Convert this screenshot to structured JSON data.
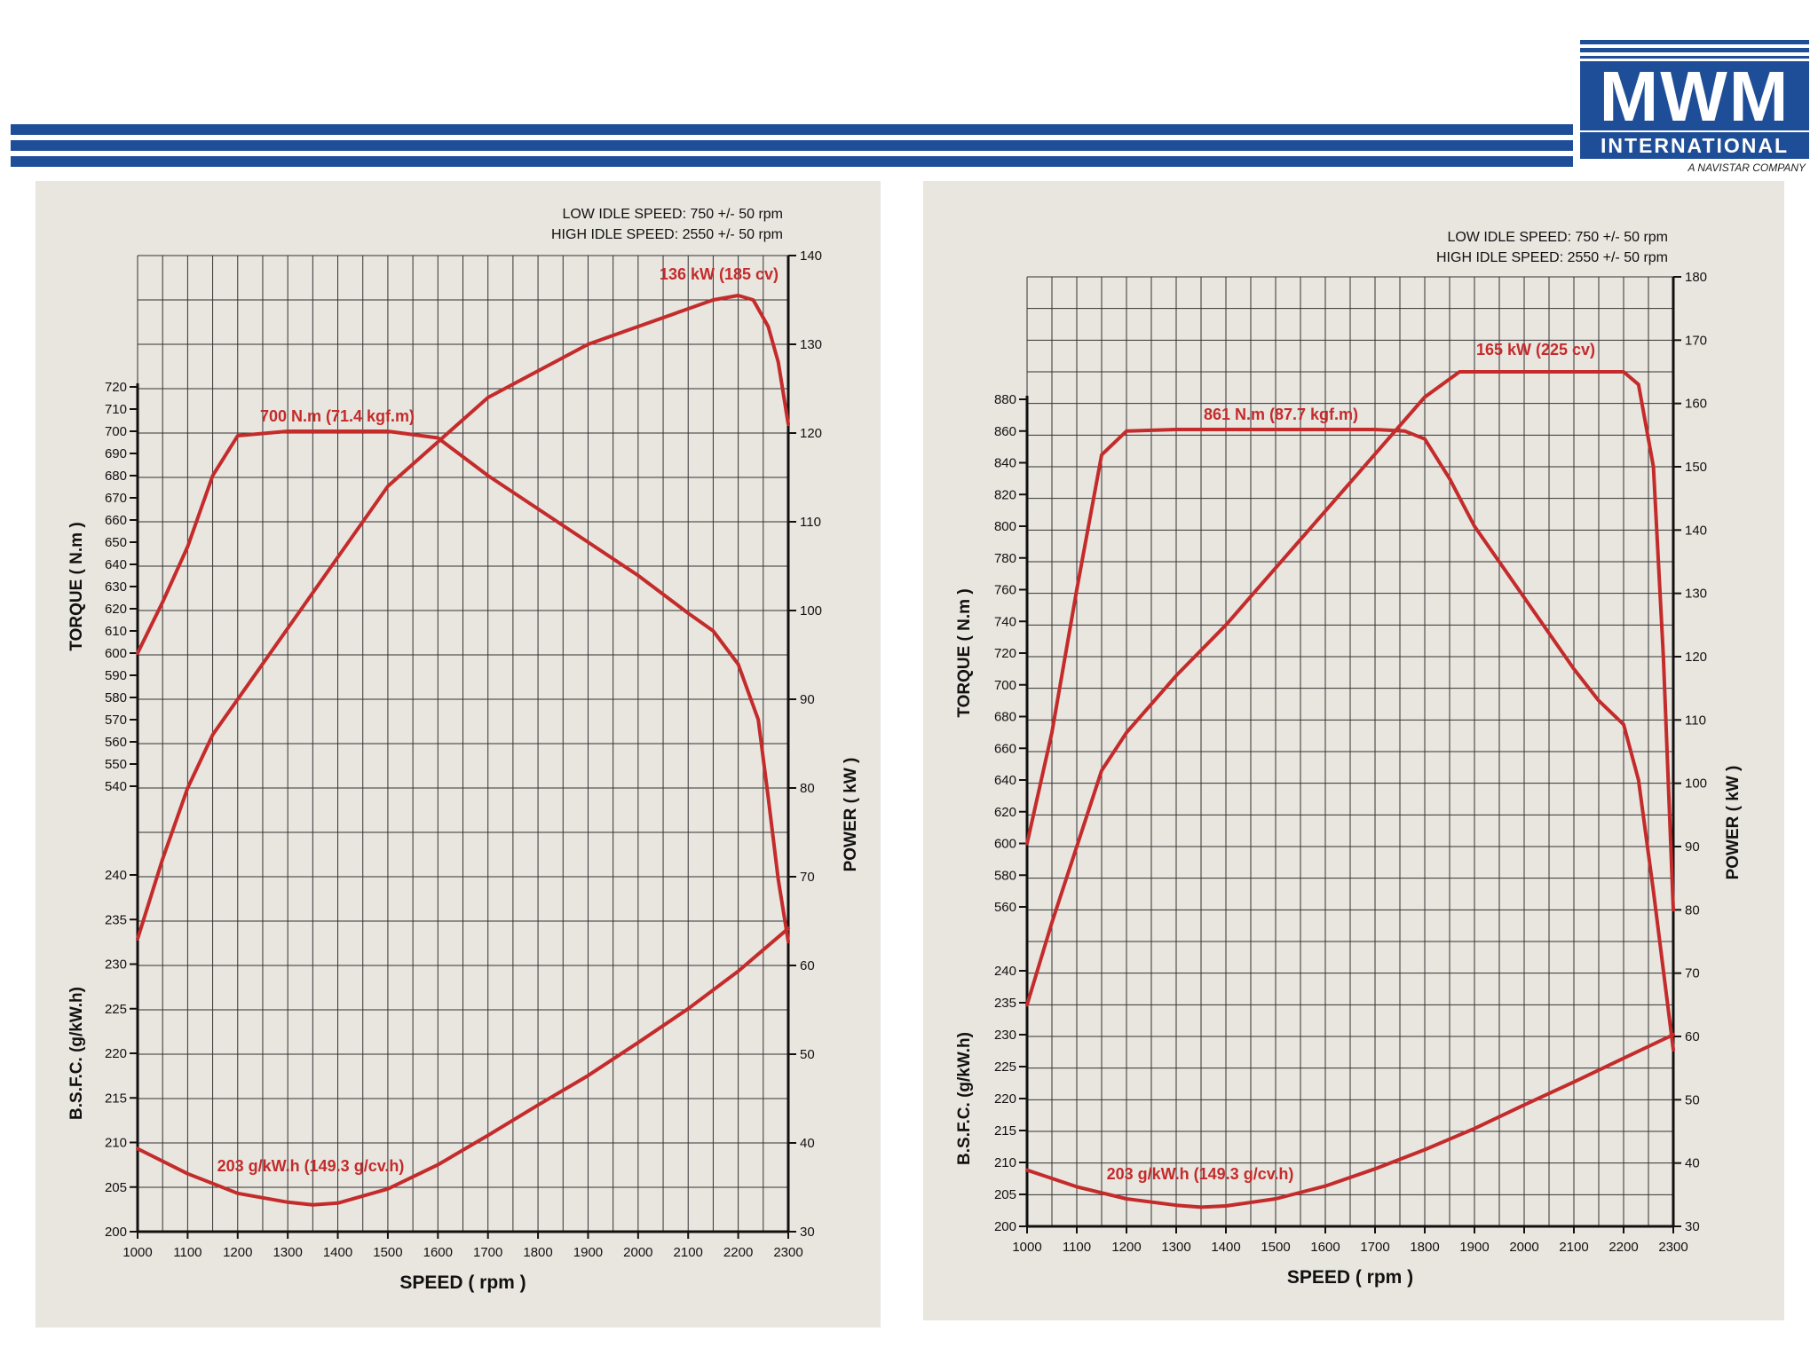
{
  "logo": {
    "main": "MWM",
    "sub": "INTERNATIONAL",
    "tagline": "A NAVISTAR COMPANY"
  },
  "colors": {
    "brand_blue": "#1f4e98",
    "curve_red": "#c42b2b",
    "grid": "#333333",
    "paper": "#e9e5df"
  },
  "chart_data": [
    {
      "type": "line",
      "notes": [
        "LOW IDLE SPEED: 750 +/- 50 rpm",
        "HIGH IDLE SPEED: 2550 +/- 50 rpm"
      ],
      "xlabel": "SPEED  ( rpm )",
      "x_ticks": [
        1000,
        1100,
        1200,
        1300,
        1400,
        1500,
        1600,
        1700,
        1800,
        1900,
        2000,
        2100,
        2200,
        2300
      ],
      "xlim": [
        1000,
        2300
      ],
      "torque_axis": {
        "label": "TORQUE  ( N.m )",
        "range": [
          540,
          720
        ],
        "ticks": [
          540,
          550,
          560,
          570,
          580,
          590,
          600,
          610,
          620,
          630,
          640,
          650,
          660,
          670,
          680,
          690,
          700,
          710,
          720
        ]
      },
      "bsfc_axis": {
        "label": "B.S.F.C.  (g/kW.h)",
        "range": [
          200,
          240
        ],
        "ticks": [
          200,
          205,
          210,
          215,
          220,
          225,
          230,
          235,
          240
        ]
      },
      "power_axis": {
        "label": "POWER ( kW )",
        "range": [
          30,
          140
        ],
        "ticks": [
          30,
          40,
          50,
          60,
          70,
          80,
          90,
          100,
          110,
          120,
          130,
          140
        ]
      },
      "annotations": {
        "power": "136 kW (185 cv)",
        "torque": "700 N.m (71.4 kgf.m)",
        "bsfc": "203 g/kW.h (149.3 g/cv.h)"
      },
      "series": [
        {
          "name": "Torque",
          "axis": "torque",
          "x": [
            1000,
            1050,
            1100,
            1150,
            1200,
            1300,
            1400,
            1500,
            1600,
            1700,
            1800,
            1900,
            2000,
            2100,
            2150,
            2200,
            2240,
            2260,
            2280,
            2300
          ],
          "y": [
            600,
            623,
            648,
            680,
            698,
            700,
            700,
            700,
            697,
            680,
            665,
            650,
            635,
            618,
            610,
            595,
            570,
            535,
            498,
            470
          ]
        },
        {
          "name": "Power",
          "axis": "power",
          "x": [
            1000,
            1050,
            1100,
            1150,
            1200,
            1300,
            1400,
            1500,
            1600,
            1700,
            1800,
            1900,
            2000,
            2100,
            2150,
            2200,
            2230,
            2260,
            2280,
            2300
          ],
          "y": [
            63,
            72,
            80,
            86,
            90,
            98,
            106,
            114,
            119,
            124,
            127,
            130,
            132,
            134,
            135,
            135.5,
            135,
            132,
            128,
            121
          ]
        },
        {
          "name": "BSFC",
          "axis": "bsfc",
          "x": [
            1000,
            1100,
            1200,
            1300,
            1350,
            1400,
            1500,
            1600,
            1700,
            1800,
            1900,
            2000,
            2100,
            2200,
            2300
          ],
          "y": [
            209.3,
            206.5,
            204.3,
            203.3,
            203,
            203.2,
            204.8,
            207.5,
            210.8,
            214.2,
            217.5,
            221.2,
            225,
            229.2,
            234
          ]
        }
      ]
    },
    {
      "type": "line",
      "notes": [
        "LOW IDLE SPEED: 750 +/- 50 rpm",
        "HIGH IDLE SPEED: 2550 +/- 50 rpm"
      ],
      "xlabel": "SPEED  ( rpm )",
      "x_ticks": [
        1000,
        1100,
        1200,
        1300,
        1400,
        1500,
        1600,
        1700,
        1800,
        1900,
        2000,
        2100,
        2200,
        2300
      ],
      "xlim": [
        1000,
        2300
      ],
      "torque_axis": {
        "label": "TORQUE  ( N.m )",
        "range": [
          560,
          880
        ],
        "ticks": [
          560,
          580,
          600,
          620,
          640,
          660,
          680,
          700,
          720,
          740,
          760,
          780,
          800,
          820,
          840,
          860,
          880
        ]
      },
      "bsfc_axis": {
        "label": "B.S.F.C.  (g/kW.h)",
        "range": [
          200,
          240
        ],
        "ticks": [
          200,
          205,
          210,
          215,
          220,
          225,
          230,
          235,
          240
        ]
      },
      "power_axis": {
        "label": "POWER ( kW )",
        "range": [
          30,
          180
        ],
        "ticks": [
          30,
          40,
          50,
          60,
          70,
          80,
          90,
          100,
          110,
          120,
          130,
          140,
          150,
          160,
          170,
          180
        ]
      },
      "annotations": {
        "power": "165 kW (225 cv)",
        "torque": "861 N.m (87.7 kgf.m)",
        "bsfc": "203 g/kW.h (149.3 g/cv.h)"
      },
      "series": [
        {
          "name": "Torque",
          "axis": "torque",
          "x": [
            1000,
            1050,
            1100,
            1150,
            1200,
            1300,
            1400,
            1500,
            1600,
            1700,
            1760,
            1800,
            1850,
            1900,
            2000,
            2100,
            2150,
            2200,
            2230,
            2260,
            2280,
            2300
          ],
          "y": [
            600,
            670,
            760,
            845,
            860,
            861,
            861,
            861,
            861,
            861,
            860,
            855,
            830,
            800,
            755,
            710,
            690,
            675,
            640,
            570,
            520,
            470
          ]
        },
        {
          "name": "Power",
          "axis": "power",
          "x": [
            1000,
            1050,
            1100,
            1150,
            1200,
            1300,
            1400,
            1500,
            1600,
            1700,
            1800,
            1870,
            1900,
            2000,
            2100,
            2200,
            2230,
            2260,
            2280,
            2300
          ],
          "y": [
            65,
            78,
            90,
            102,
            108,
            117,
            125,
            134,
            143,
            152,
            161,
            165,
            165,
            165,
            165,
            165,
            163,
            150,
            120,
            80
          ]
        },
        {
          "name": "BSFC",
          "axis": "bsfc",
          "x": [
            1000,
            1100,
            1200,
            1300,
            1350,
            1400,
            1500,
            1600,
            1700,
            1800,
            1900,
            2000,
            2100,
            2200,
            2300
          ],
          "y": [
            208.8,
            206.2,
            204.3,
            203.3,
            203,
            203.2,
            204.3,
            206.3,
            209,
            212,
            215.3,
            219,
            222.6,
            226.3,
            230
          ]
        }
      ]
    }
  ]
}
